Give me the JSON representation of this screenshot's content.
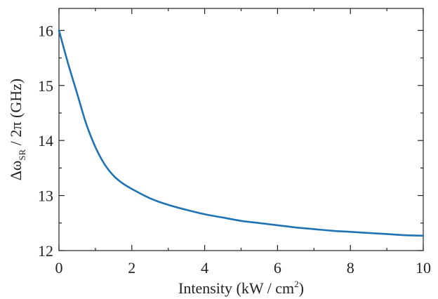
{
  "chart_data": {
    "type": "line",
    "title": "",
    "xlabel": "Intensity (kW / cm",
    "xlabel_sup": "2",
    "xlabel_tail": ")",
    "ylabel": {
      "delta": "Δω",
      "sub": "SR",
      "rest": " / 2π (GHz)"
    },
    "xlim": [
      0,
      10
    ],
    "ylim": [
      12,
      16.4
    ],
    "x_major_ticks": [
      0,
      2,
      4,
      6,
      8,
      10
    ],
    "x_minor_ticks": [
      1,
      3,
      5,
      7,
      9
    ],
    "x_tick_labels": [
      "0",
      "2",
      "4",
      "6",
      "8",
      "10"
    ],
    "y_major_ticks": [
      12,
      13,
      14,
      15,
      16
    ],
    "y_minor_ticks": [
      12.5,
      13.5,
      14.5,
      15.5
    ],
    "y_tick_labels": [
      "12",
      "13",
      "14",
      "15",
      "16"
    ],
    "grid": false,
    "legend": "none",
    "series": [
      {
        "color": "#1f72b4",
        "x": [
          0,
          0.25,
          0.5,
          0.75,
          1.0,
          1.25,
          1.5,
          1.75,
          2.0,
          2.5,
          3.0,
          3.5,
          4.0,
          4.5,
          5.0,
          5.5,
          6.0,
          6.5,
          7.0,
          7.5,
          8.0,
          8.5,
          9.0,
          9.5,
          10.0
        ],
        "y": [
          16.0,
          15.4,
          14.85,
          14.3,
          13.88,
          13.57,
          13.36,
          13.22,
          13.12,
          12.95,
          12.83,
          12.74,
          12.66,
          12.6,
          12.54,
          12.5,
          12.46,
          12.42,
          12.39,
          12.36,
          12.34,
          12.32,
          12.3,
          12.28,
          12.27
        ]
      }
    ]
  }
}
